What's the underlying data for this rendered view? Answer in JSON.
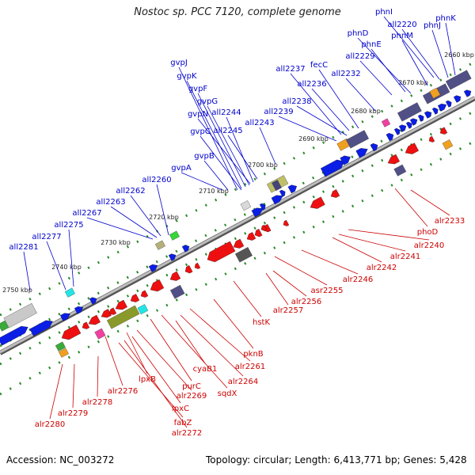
{
  "title": "Nostoc sp. PCC 7120, complete genome",
  "footer": {
    "accession": "Accession: NC_003272",
    "summary": "Topology: circular; Length: 6,413,771 bp; Genes: 5,428"
  },
  "colors": {
    "forward_label": "#0000cc",
    "reverse_label": "#cc0000",
    "backbone": "#a8a8a8"
  },
  "scale_ticks": [
    "2660 kbp",
    "2670 kbp",
    "2680 kbp",
    "2690 kbp",
    "2700 kbp",
    "2710 kbp",
    "2720 kbp",
    "2730 kbp",
    "2740 kbp",
    "2750 kbp"
  ],
  "forward_genes": [
    "phnI",
    "phnK",
    "all2220",
    "phnJ",
    "phnD",
    "phnM",
    "phnE",
    "all2229",
    "fecC",
    "all2237",
    "all2232",
    "all2236",
    "all2238",
    "all2239",
    "gvpJ",
    "gvpK",
    "gvpF",
    "gvpG",
    "gvpN",
    "all2244",
    "all2243",
    "gvpC",
    "all2245",
    "gvpB",
    "gvpA",
    "all2260",
    "all2262",
    "all2263",
    "all2267",
    "all2275",
    "all2277",
    "all2281"
  ],
  "reverse_genes": [
    "alr2233",
    "phoD",
    "alr2240",
    "alr2241",
    "alr2242",
    "alr2246",
    "asr2255",
    "alr2256",
    "alr2257",
    "hstK",
    "pknB",
    "alr2261",
    "cyaB1",
    "alr2264",
    "sqdX",
    "purC",
    "alr2269",
    "lpxB",
    "lpxC",
    "fabZ",
    "alr2272",
    "alr2276",
    "alr2278",
    "alr2279",
    "alr2280"
  ]
}
